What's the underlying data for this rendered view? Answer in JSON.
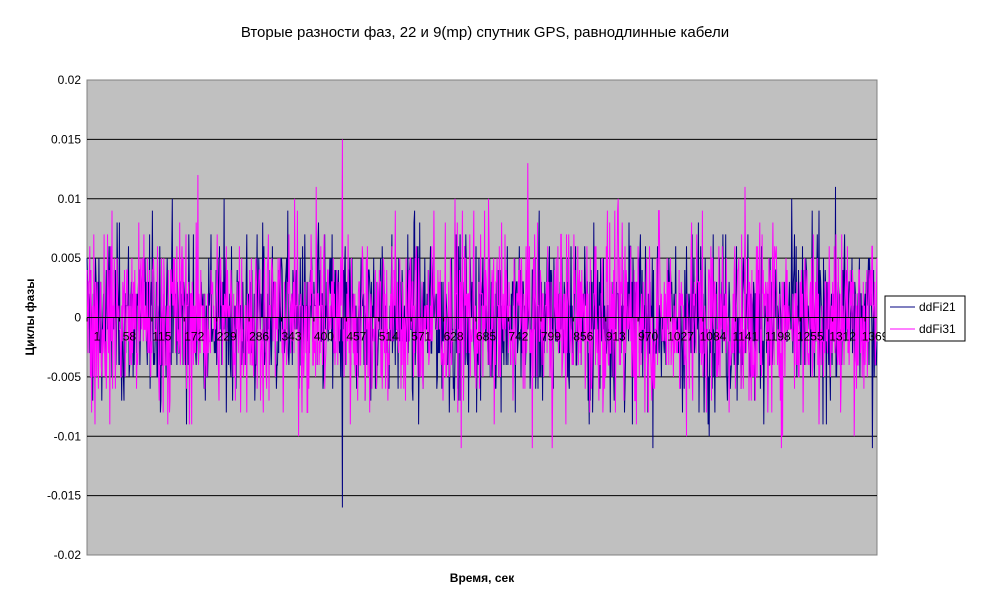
{
  "chart_data": {
    "type": "line",
    "title": "Вторые разности фаз, 22 и 9(mp) спутник GPS, равнодлинные кабели",
    "xlabel": "Время, сек",
    "ylabel": "Циклы фазы",
    "ylim": [
      -0.02,
      0.02
    ],
    "yticks": [
      0.02,
      0.015,
      0.01,
      0.005,
      0,
      -0.005,
      -0.01,
      -0.015,
      -0.02
    ],
    "ytick_labels": [
      "0.02",
      "0.015",
      "0.01",
      "0.005",
      "0",
      "-0.005",
      "-0.01",
      "-0.015",
      "-0.02"
    ],
    "xtick_labels": [
      "1",
      "58",
      "115",
      "172",
      "229",
      "286",
      "343",
      "400",
      "457",
      "514",
      "571",
      "628",
      "685",
      "742",
      "799",
      "856",
      "913",
      "970",
      "1027",
      "1084",
      "1141",
      "1198",
      "1255",
      "1312",
      "1369"
    ],
    "x_range": [
      1,
      1390
    ],
    "grid": "horizontal",
    "legend_position": "right",
    "plot_background": "#c0c0c0",
    "series": [
      {
        "name": "ddFi21",
        "color": "#000080",
        "quantum": 0.001,
        "std": 0.0035,
        "min": -0.016,
        "max": 0.012,
        "note": "noise series, ~1390 samples, extremes at x≈450 (-0.016), x≈430 (-0.014), x≈1250 (-0.011)"
      },
      {
        "name": "ddFi31",
        "color": "#ff00ff",
        "quantum": 0.001,
        "std": 0.004,
        "min": -0.011,
        "max": 0.015,
        "note": "noise series, ~1390 samples, extremes at x≈450 (0.015), x≈1240 (0.012), x≈50 (0.012)"
      }
    ]
  }
}
